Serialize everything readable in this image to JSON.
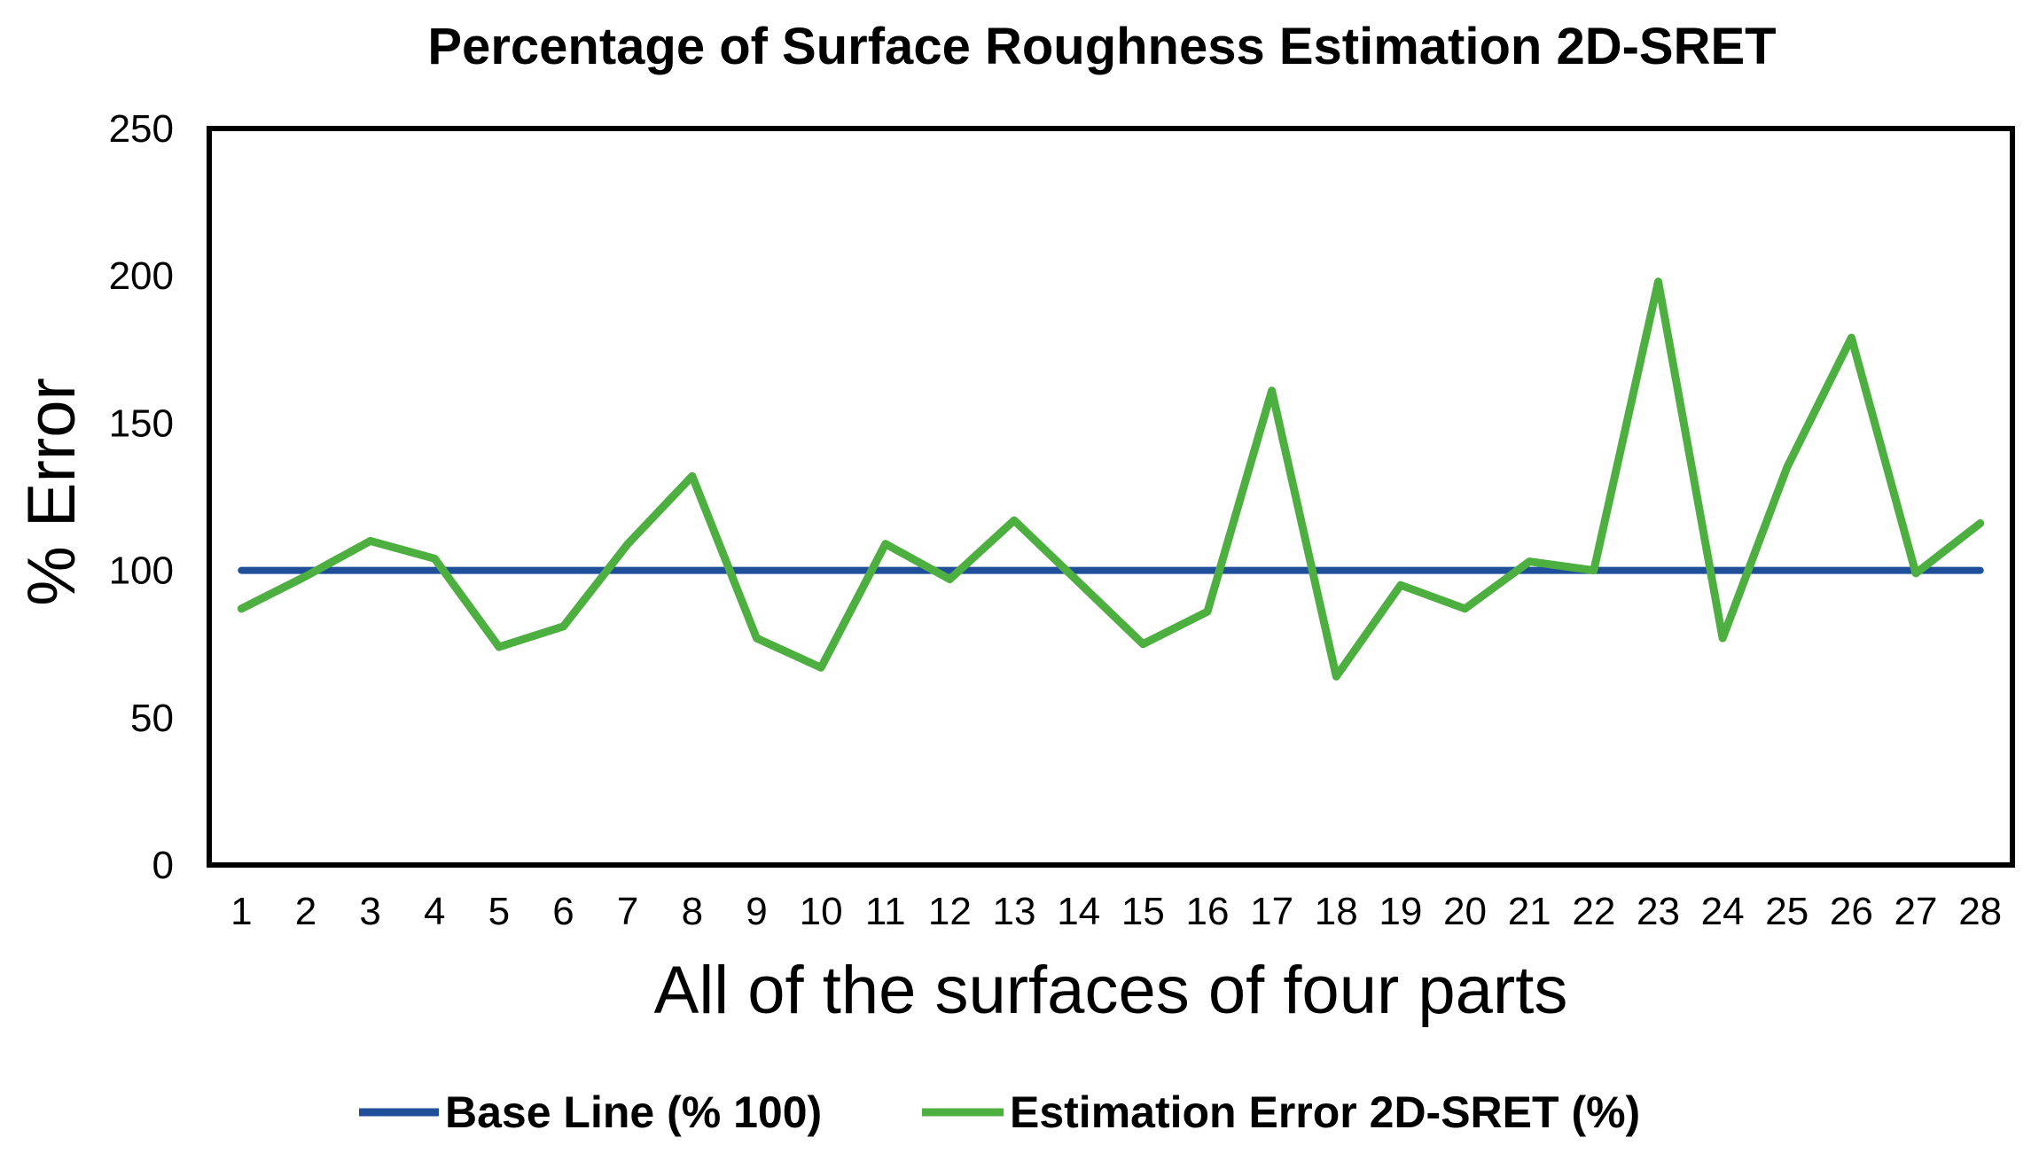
{
  "chart_data": {
    "type": "line",
    "title": "Percentage of Surface Roughness Estimation 2D-SRET",
    "xlabel": "All of the surfaces of four parts",
    "ylabel": "% Error",
    "ylim": [
      0,
      250
    ],
    "yticks": [
      0,
      50,
      100,
      150,
      200,
      250
    ],
    "categories": [
      "1",
      "2",
      "3",
      "4",
      "5",
      "6",
      "7",
      "8",
      "9",
      "10",
      "11",
      "12",
      "13",
      "14",
      "15",
      "16",
      "17",
      "18",
      "19",
      "20",
      "21",
      "22",
      "23",
      "24",
      "25",
      "26",
      "27",
      "28"
    ],
    "grid": false,
    "legend_position": "bottom",
    "series": [
      {
        "name": "Base Line (% 100)",
        "color": "#1f4e9a",
        "values": [
          100,
          100,
          100,
          100,
          100,
          100,
          100,
          100,
          100,
          100,
          100,
          100,
          100,
          100,
          100,
          100,
          100,
          100,
          100,
          100,
          100,
          100,
          100,
          100,
          100,
          100,
          100,
          100
        ]
      },
      {
        "name": "Estimation Error 2D-SRET (%)",
        "color": "#4caf3f",
        "values": [
          87,
          98,
          110,
          104,
          74,
          81,
          109,
          132,
          77,
          67,
          109,
          97,
          117,
          96,
          75,
          86,
          161,
          64,
          95,
          87,
          103,
          100,
          198,
          77,
          135,
          179,
          99,
          116
        ]
      }
    ]
  }
}
